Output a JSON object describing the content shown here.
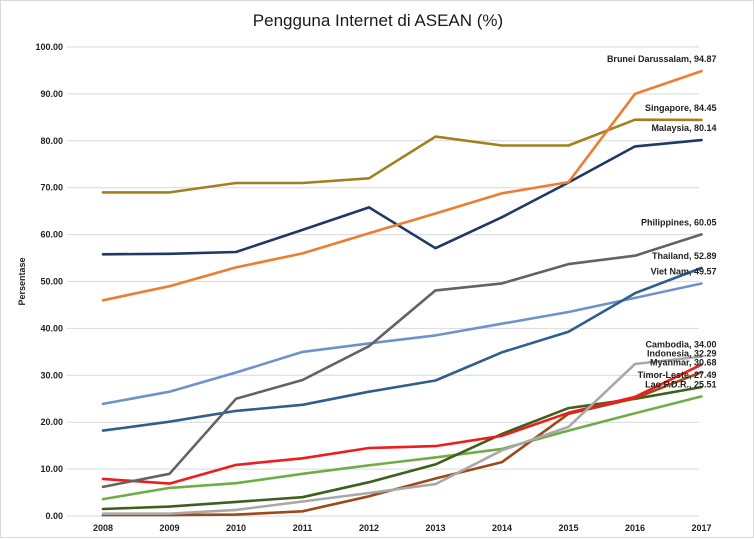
{
  "chart_data": {
    "type": "line",
    "title": "Pengguna Internet di ASEAN (%)",
    "ylabel": "Persentase",
    "xlabel": "",
    "ylim": [
      0,
      100
    ],
    "yticks": [
      "0.00",
      "10.00",
      "20.00",
      "30.00",
      "40.00",
      "50.00",
      "60.00",
      "70.00",
      "80.00",
      "90.00",
      "100.00"
    ],
    "categories": [
      "2008",
      "2009",
      "2010",
      "2011",
      "2012",
      "2013",
      "2014",
      "2015",
      "2016",
      "2017"
    ],
    "grid": "horizontal",
    "series": [
      {
        "name": "Brunei Darussalam",
        "end_label": "Brunei Darussalam, 94.87",
        "color": "#ED7D31",
        "values": [
          46,
          49,
          53,
          56,
          60.3,
          64.5,
          68.8,
          71.2,
          90,
          94.87
        ]
      },
      {
        "name": "Singapore",
        "end_label": "Singapore, 84.45",
        "color": "#A08020",
        "values": [
          69,
          69,
          71,
          71,
          72,
          80.9,
          79,
          79,
          84.5,
          84.45
        ]
      },
      {
        "name": "Malaysia",
        "end_label": "Malaysia, 80.14",
        "color": "#1F3864",
        "values": [
          55.8,
          55.9,
          56.3,
          61,
          65.8,
          57.1,
          63.7,
          71.1,
          78.8,
          80.14
        ]
      },
      {
        "name": "Philippines",
        "end_label": "Philippines, 60.05",
        "color": "#636363",
        "values": [
          6.2,
          9,
          25,
          29,
          36.2,
          48.1,
          49.6,
          53.7,
          55.5,
          60.05
        ]
      },
      {
        "name": "Thailand",
        "end_label": "Thailand, 52.89",
        "color": "#2E5F8F",
        "values": [
          18.2,
          20.1,
          22.4,
          23.7,
          26.5,
          28.9,
          34.9,
          39.3,
          47.5,
          52.89
        ]
      },
      {
        "name": "Viet Nam",
        "end_label": "Viet Nam, 49.57",
        "color": "#7092CC",
        "values": [
          23.9,
          26.5,
          30.6,
          35,
          36.8,
          38.5,
          41,
          43.5,
          46.5,
          49.57
        ]
      },
      {
        "name": "Cambodia",
        "end_label": "Cambodia, 34.00",
        "color": "#A8A8A8",
        "values": [
          0.5,
          0.5,
          1.3,
          3.1,
          4.9,
          6.8,
          14,
          19,
          32.4,
          34
        ]
      },
      {
        "name": "Indonesia",
        "end_label": "Indonesia, 32.29",
        "color": "#EE1C1C",
        "values": [
          7.9,
          6.9,
          10.9,
          12.3,
          14.5,
          14.9,
          17.1,
          22,
          25.4,
          32.29
        ]
      },
      {
        "name": "Myanmar",
        "end_label": "Myanmar, 30.68",
        "color": "#9C4A19",
        "values": [
          0.2,
          0.2,
          0.3,
          1,
          4.2,
          8,
          11.5,
          21.8,
          25.1,
          30.68
        ]
      },
      {
        "name": "Timor-Leste",
        "end_label": "Timor-Leste, 27.49",
        "color": "#3F5F1F",
        "values": [
          1.5,
          2,
          3,
          4,
          7.2,
          11,
          17.5,
          23,
          25,
          27.49
        ]
      },
      {
        "name": "Lao P.D.R.",
        "end_label": "Lao P.D.R., 25.51",
        "color": "#70AD47",
        "values": [
          3.6,
          6,
          7,
          9,
          10.8,
          12.5,
          14.3,
          18.2,
          21.9,
          25.51
        ]
      }
    ]
  }
}
